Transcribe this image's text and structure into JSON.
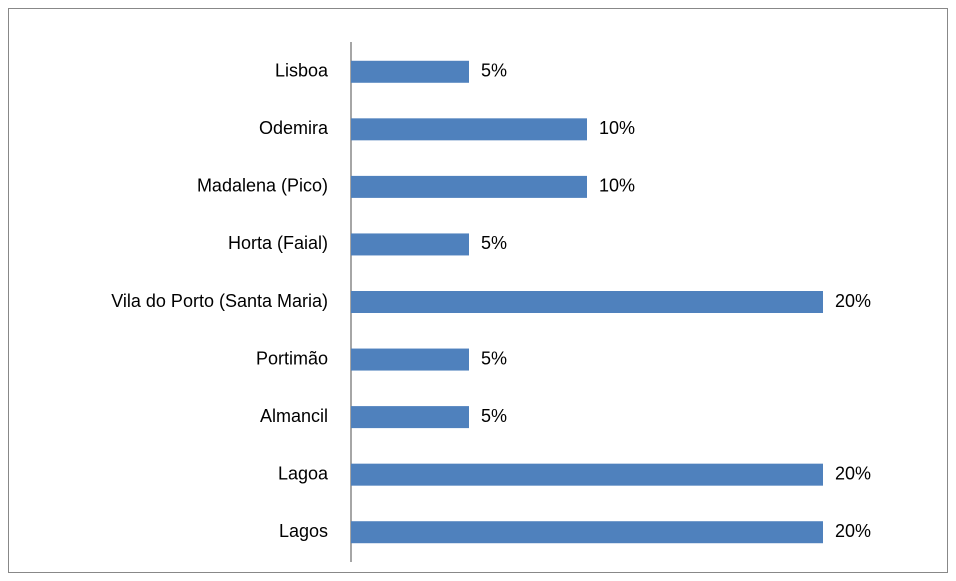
{
  "chart_data": {
    "type": "bar",
    "orientation": "horizontal",
    "categories": [
      "Lisboa",
      "Odemira",
      "Madalena (Pico)",
      "Horta (Faial)",
      "Vila do Porto (Santa Maria)",
      "Portimão",
      "Almancil",
      "Lagoa",
      "Lagos"
    ],
    "values": [
      5,
      10,
      10,
      5,
      20,
      5,
      5,
      20,
      20
    ],
    "value_labels": [
      "5%",
      "10%",
      "10%",
      "5%",
      "20%",
      "5%",
      "5%",
      "20%",
      "20%"
    ],
    "color": "#4f81bd",
    "xlim": [
      0,
      20
    ]
  }
}
